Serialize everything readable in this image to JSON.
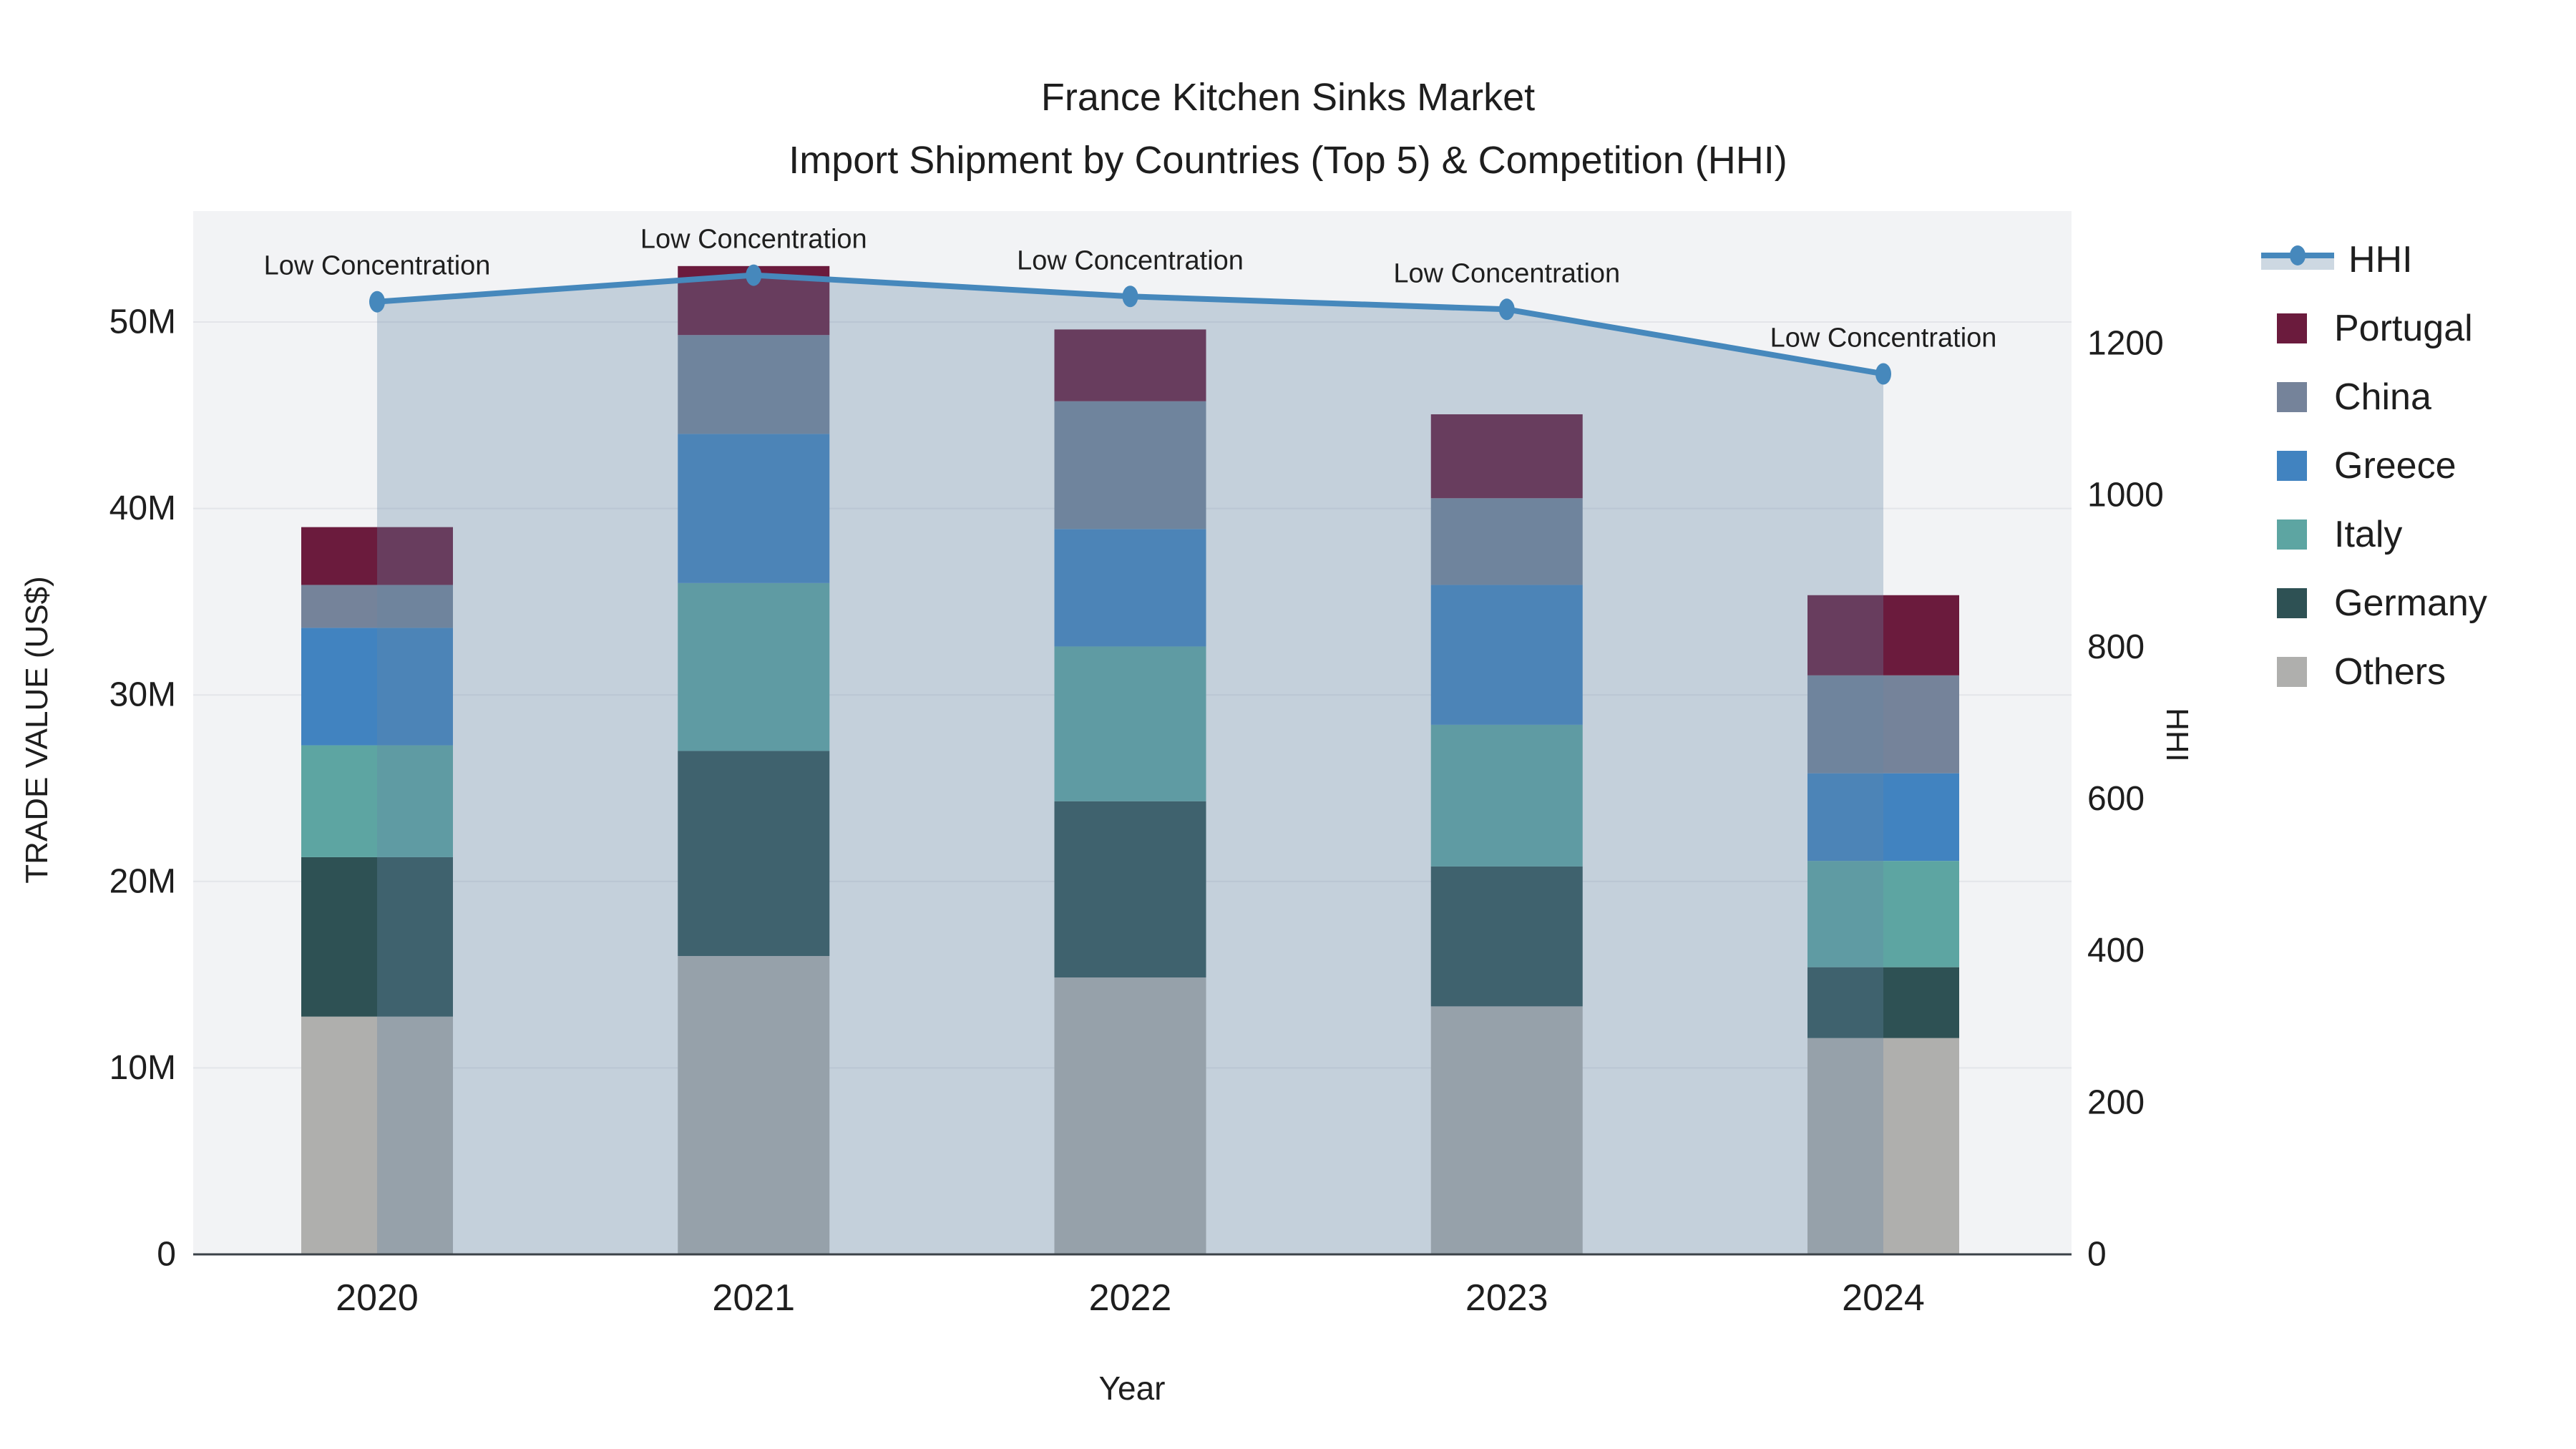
{
  "title": {
    "line1": "France Kitchen Sinks Market",
    "line2": "Import Shipment by Countries (Top 5) & Competition (HHI)"
  },
  "axes": {
    "left": {
      "title": "TRADE VALUE (US$)",
      "tick_labels": [
        "0",
        "10M",
        "20M",
        "30M",
        "40M",
        "50M"
      ],
      "tick_values": [
        0,
        10,
        20,
        30,
        40,
        50
      ],
      "range": [
        0,
        55.95
      ]
    },
    "right": {
      "title": "HHI",
      "tick_labels": [
        "0",
        "200",
        "400",
        "600",
        "800",
        "1000",
        "1200"
      ],
      "tick_values": [
        0,
        200,
        400,
        600,
        800,
        1000,
        1200
      ],
      "range": [
        0,
        1374
      ]
    },
    "x": {
      "title": "Year",
      "categories": [
        "2020",
        "2021",
        "2022",
        "2023",
        "2024"
      ]
    }
  },
  "chart_data": {
    "type": "bar",
    "subtype": "stacked-bars-with-line",
    "categories": [
      "2020",
      "2021",
      "2022",
      "2023",
      "2024"
    ],
    "value_unit": "million US$",
    "series": [
      {
        "name": "Others",
        "color": "#afafad",
        "values": [
          12.75,
          16.0,
          14.85,
          13.3,
          11.6
        ]
      },
      {
        "name": "Germany",
        "color": "#2e5154",
        "values": [
          8.55,
          11.0,
          9.45,
          7.5,
          3.8
        ]
      },
      {
        "name": "Italy",
        "color": "#5da5a2",
        "values": [
          6.0,
          9.0,
          8.3,
          7.6,
          5.7
        ]
      },
      {
        "name": "Greece",
        "color": "#4183c0",
        "values": [
          6.3,
          8.0,
          6.3,
          7.5,
          4.7
        ]
      },
      {
        "name": "China",
        "color": "#75839a",
        "values": [
          2.3,
          5.3,
          6.85,
          4.65,
          5.25
        ]
      },
      {
        "name": "Portugal",
        "color": "#6b1b3d",
        "values": [
          3.1,
          3.7,
          3.85,
          4.5,
          4.3
        ]
      }
    ],
    "totals": [
      39.0,
      53.0,
      49.6,
      45.05,
      35.35
    ],
    "line": {
      "name": "HHI",
      "axis": "right",
      "values": [
        1255,
        1290,
        1262,
        1245,
        1160
      ],
      "color": "#4688bc",
      "area_fill": "rgba(100,135,165,0.32)"
    },
    "annotations": [
      {
        "category": "2020",
        "text": "Low Concentration"
      },
      {
        "category": "2021",
        "text": "Low Concentration"
      },
      {
        "category": "2022",
        "text": "Low Concentration"
      },
      {
        "category": "2023",
        "text": "Low Concentration"
      },
      {
        "category": "2024",
        "text": "Low Concentration"
      }
    ],
    "grid": true,
    "legend_position": "right",
    "plot_bg": "#f2f3f5",
    "grid_color": "#e3e5e9",
    "axis_line_color": "#3b4248"
  },
  "legend": {
    "items": [
      {
        "label": "HHI",
        "type": "line",
        "color": "#4688bc"
      },
      {
        "label": "Portugal",
        "type": "square",
        "color": "#6b1b3d"
      },
      {
        "label": "China",
        "type": "square",
        "color": "#75839a"
      },
      {
        "label": "Greece",
        "type": "square",
        "color": "#4183c0"
      },
      {
        "label": "Italy",
        "type": "square",
        "color": "#5da5a2"
      },
      {
        "label": "Germany",
        "type": "square",
        "color": "#2e5154"
      },
      {
        "label": "Others",
        "type": "square",
        "color": "#afafad"
      }
    ]
  }
}
